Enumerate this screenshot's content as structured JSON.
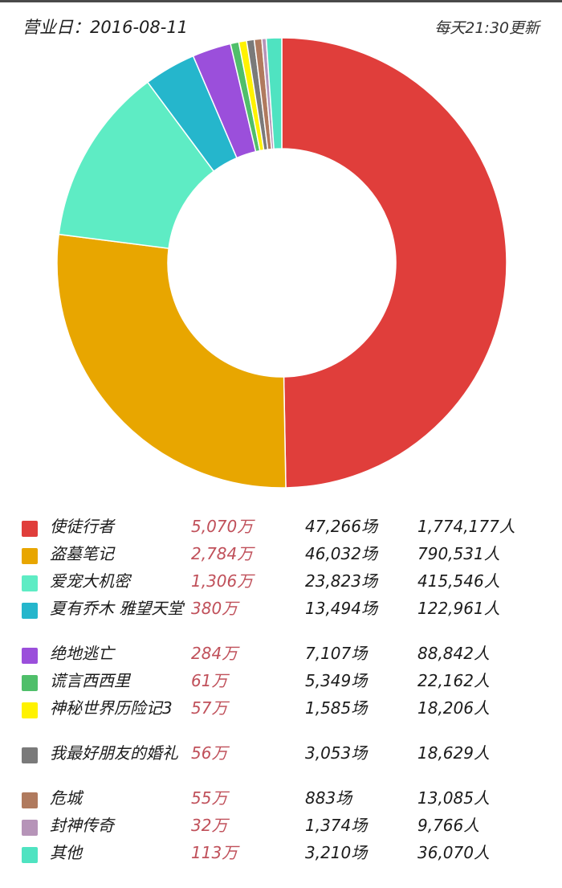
{
  "header": {
    "date_label": "营业日：2016-08-11",
    "update_label": "每天21:30更新"
  },
  "unit_wan": "万",
  "unit_shows": "场",
  "unit_people": "人",
  "chart_data": {
    "type": "pie",
    "donut": true,
    "categories": [
      "使徒行者",
      "盗墓笔记",
      "爱宠大机密",
      "夏有乔木 雅望天堂",
      "绝地逃亡",
      "谎言西西里",
      "神秘世界历险记3",
      "我最好朋友的婚礼",
      "危城",
      "封神传奇",
      "其他"
    ],
    "values": [
      5070,
      2784,
      1306,
      380,
      284,
      61,
      57,
      56,
      55,
      32,
      113
    ],
    "shows": [
      "47,266",
      "46,032",
      "23,823",
      "13,494",
      "7,107",
      "5,349",
      "1,585",
      "3,053",
      "883",
      "1,374",
      "3,210"
    ],
    "audience": [
      "1,774,177",
      "790,531",
      "415,546",
      "122,961",
      "88,842",
      "22,162",
      "18,206",
      "18,629",
      "13,085",
      "9,766",
      "36,070"
    ],
    "box_office_labels": [
      "5,070",
      "2,784",
      "1,306",
      "380",
      "284",
      "61",
      "57",
      "56",
      "55",
      "32",
      "113"
    ],
    "colors": [
      "#e03e3b",
      "#e8a600",
      "#5eecc4",
      "#25b6cc",
      "#9b4fdb",
      "#4fbf6a",
      "#fff200",
      "#7a7a7a",
      "#b07a5e",
      "#b694b8",
      "#4fe3c1"
    ],
    "legend_position": "bottom"
  }
}
